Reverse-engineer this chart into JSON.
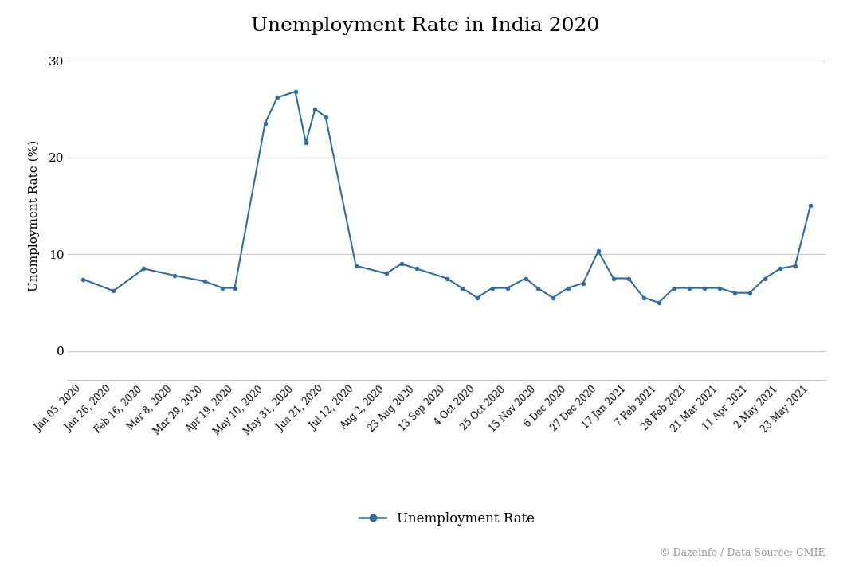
{
  "title": "Unemployment Rate in India 2020",
  "ylabel": "Unemployment Rate (%)",
  "watermark": "© Dazeinfo / Data Source: CMIE",
  "legend_label": "Unemployment Rate",
  "line_color": "#2e6da4",
  "marker_color": "#2e6da4",
  "background_color": "#ffffff",
  "grid_color": "#c8c8c8",
  "ylim": [
    -3,
    31
  ],
  "yticks": [
    0,
    10,
    20,
    30
  ],
  "x_tick_labels": [
    "Jan 05, 2020",
    "Jan 26, 2020",
    "Feb 16, 2020",
    "Mar 8, 2020",
    "Mar 29, 2020",
    "Apr 19, 2020",
    "May 10, 2020",
    "May 31, 2020",
    "Jun 21, 2020",
    "Jul 12, 2020",
    "Aug 2, 2020",
    "23 Aug 2020",
    "13 Sep 2020",
    "4 Oct 2020",
    "25 Oct 2020",
    "15 Nov 2020",
    "6 Dec 2020",
    "27 Dec 2020",
    "17 Jan 2021",
    "7 Feb 2021",
    "28 Feb 2021",
    "21 Mar 2021",
    "11 Apr 2021",
    "2 May 2021",
    "23 May 2021"
  ],
  "x_pts": [
    0,
    1,
    2,
    3,
    4,
    4.6,
    5,
    6,
    6.4,
    7,
    7.35,
    7.65,
    8,
    9,
    10,
    10.5,
    11,
    12,
    12.5,
    13,
    13.5,
    14,
    14.6,
    15,
    15.5,
    16,
    16.5,
    17,
    17.5,
    18,
    18.5,
    19,
    19.5,
    20,
    20.5,
    21,
    21.5,
    22,
    22.5,
    23,
    23.5,
    24
  ],
  "y_pts": [
    7.4,
    6.2,
    8.5,
    7.8,
    7.2,
    6.5,
    6.5,
    23.5,
    26.2,
    26.8,
    21.5,
    25.0,
    24.2,
    8.8,
    8.0,
    9.0,
    8.5,
    7.5,
    6.5,
    5.5,
    6.5,
    6.5,
    7.5,
    6.5,
    5.5,
    6.5,
    7.0,
    10.3,
    7.5,
    7.5,
    5.5,
    5.0,
    6.5,
    6.5,
    6.5,
    6.5,
    6.0,
    6.0,
    7.5,
    8.5,
    8.8,
    15.0
  ]
}
